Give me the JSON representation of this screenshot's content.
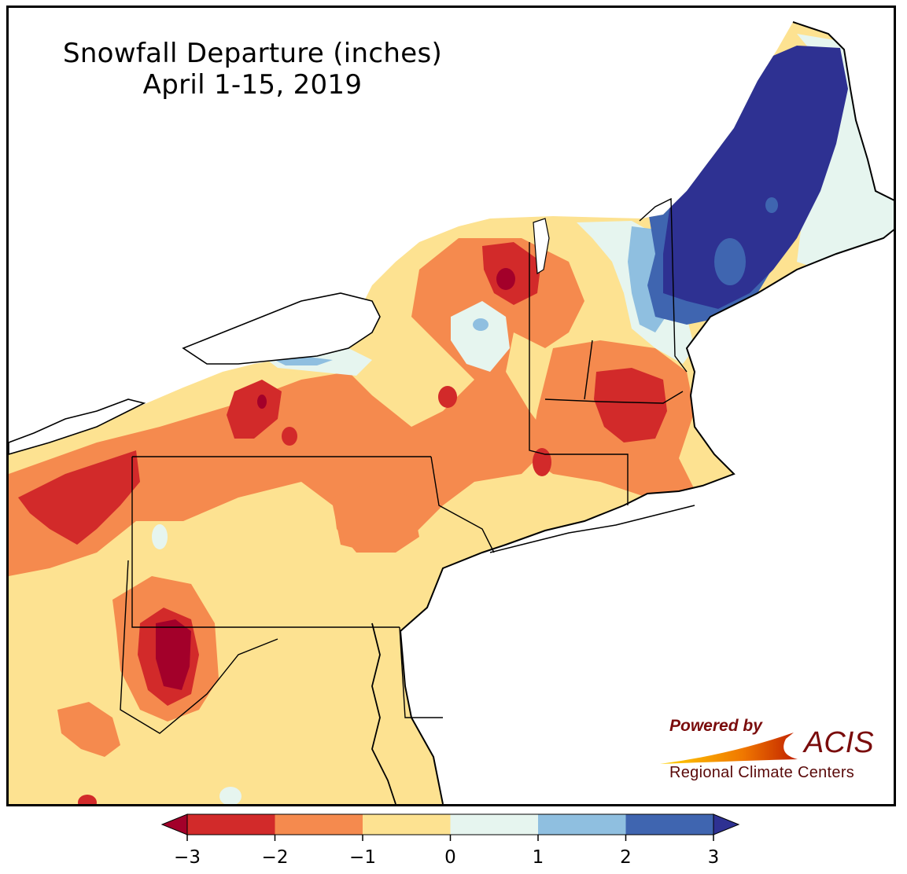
{
  "title": {
    "line1": "Snowfall Departure (inches)",
    "line2": "April 1-15, 2019"
  },
  "legend": {
    "units": "inches",
    "bins": [
      {
        "from": -3,
        "to": -2,
        "color": "#d22a2a"
      },
      {
        "from": -2,
        "to": -1,
        "color": "#f58a4e"
      },
      {
        "from": -1,
        "to": 0,
        "color": "#fde291"
      },
      {
        "from": 0,
        "to": 1,
        "color": "#e6f5ef"
      },
      {
        "from": 1,
        "to": 2,
        "color": "#8fbfe0"
      },
      {
        "from": 2,
        "to": 3,
        "color": "#3f65b0"
      }
    ],
    "under_color": "#a3002a",
    "over_color": "#2e3192",
    "ticks": [
      "−3",
      "−2",
      "−1",
      "0",
      "1",
      "2",
      "3"
    ]
  },
  "logo": {
    "powered_by": "Powered by",
    "name": "ACIS",
    "subtitle": "Regional Climate Centers"
  }
}
